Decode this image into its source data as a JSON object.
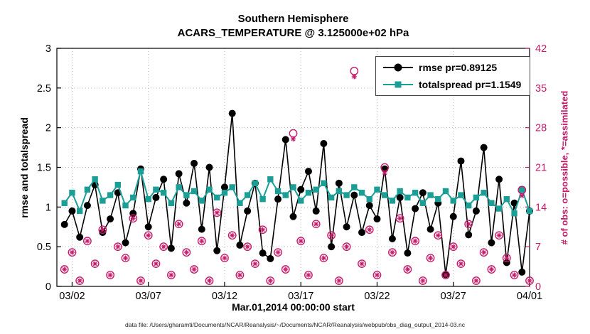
{
  "title": {
    "line1": "Southern Hemisphere",
    "line2": "ACARS_TEMPERATURE @ 3.125000e+02 hPa"
  },
  "axes": {
    "left_label": "rmse and totalspread",
    "right_label": "# of obs: o=possible, *=assimilated",
    "x_label": "Mar.01,2014 00:00:00 start",
    "left_ticks": [
      0,
      0.5,
      1,
      1.5,
      2,
      2.5,
      3
    ],
    "left_tick_labels": [
      "0",
      "0.5",
      "1",
      "1.5",
      "2",
      "2.5",
      "3"
    ],
    "right_ticks": [
      0,
      7,
      14,
      21,
      28,
      35,
      42
    ],
    "right_tick_labels": [
      "0",
      "7",
      "14",
      "21",
      "28",
      "35",
      "42"
    ],
    "x_tick_days": [
      1,
      6,
      11,
      16,
      21,
      26,
      31
    ],
    "x_tick_labels": [
      "03/02",
      "03/07",
      "03/12",
      "03/17",
      "03/22",
      "03/27",
      "04/01"
    ]
  },
  "legend": [
    {
      "label": "rmse pr=0.89125",
      "marker": "circle",
      "color": "#000000"
    },
    {
      "label": "totalspread pr=1.1549",
      "marker": "square",
      "color": "#1A9E96"
    }
  ],
  "colors": {
    "rmse": "#000000",
    "totalspread": "#1A9E96",
    "obs": "#C51B6B",
    "grid": "#b8b8b8",
    "axis": "#000000"
  },
  "caption": "data file: /Users/gharamti/Documents/NCAR/Reanalysis/~/Documents/NCAR/Reanalysis/webpub/obs_diag_output_2014-03.nc",
  "chart_data": {
    "type": "line",
    "title": "Southern Hemisphere — ACARS_TEMPERATURE @ 3.125000e+02 hPa",
    "x_unit": "days since Mar.01,2014 00:00:00",
    "xlim": [
      0,
      31
    ],
    "left_ylim": [
      0,
      3
    ],
    "right_ylim": [
      0,
      42
    ],
    "grid": true,
    "x": [
      0.5,
      1,
      1.5,
      2,
      2.5,
      3,
      3.5,
      4,
      4.5,
      5,
      5.5,
      6,
      6.5,
      7,
      7.5,
      8,
      8.5,
      9,
      9.5,
      10,
      10.5,
      11,
      11.5,
      12,
      12.5,
      13,
      13.5,
      14,
      14.5,
      15,
      15.5,
      16,
      16.5,
      17,
      17.5,
      18,
      18.5,
      19,
      19.5,
      20,
      20.5,
      21,
      21.5,
      22,
      22.5,
      23,
      23.5,
      24,
      24.5,
      25,
      25.5,
      26,
      26.5,
      27,
      27.5,
      28,
      28.5,
      29,
      29.5,
      30,
      30.5,
      31
    ],
    "series": [
      {
        "name": "rmse",
        "axis": "left",
        "marker": "circle",
        "color": "#000000",
        "values": [
          0.78,
          0.95,
          0.62,
          1.02,
          1.28,
          0.68,
          0.85,
          1.18,
          0.55,
          0.92,
          1.48,
          0.75,
          1.12,
          1.35,
          0.48,
          1.42,
          1.05,
          1.55,
          0.72,
          1.5,
          0.45,
          1.25,
          2.18,
          0.52,
          0.95,
          1.3,
          0.42,
          0.35,
          1.1,
          1.85,
          0.88,
          1.22,
          1.45,
          0.95,
          1.8,
          0.5,
          1.3,
          0.75,
          1.15,
          0.68,
          1.02,
          0.85,
          1.48,
          0.6,
          1.12,
          0.42,
          0.98,
          1.18,
          0.72,
          1.05,
          0.15,
          0.88,
          1.58,
          0.65,
          0.95,
          1.75,
          0.55,
          1.35,
          0.3,
          1.05,
          0.18,
          0.95
        ]
      },
      {
        "name": "totalspread",
        "axis": "left",
        "marker": "square",
        "color": "#1A9E96",
        "values": [
          1.05,
          1.18,
          0.95,
          1.22,
          1.35,
          1.08,
          1.15,
          1.28,
          1.02,
          1.12,
          1.45,
          1.1,
          1.22,
          1.18,
          1.05,
          1.25,
          1.15,
          1.2,
          1.08,
          1.22,
          1.12,
          1.18,
          1.25,
          1.05,
          1.15,
          1.3,
          1.1,
          1.35,
          1.2,
          1.15,
          1.25,
          1.08,
          1.18,
          1.22,
          1.3,
          1.12,
          1.2,
          1.15,
          1.25,
          1.18,
          1.1,
          1.22,
          1.15,
          1.08,
          1.2,
          1.12,
          1.18,
          1.05,
          1.15,
          1.1,
          1.2,
          1.08,
          1.15,
          1.02,
          1.12,
          1.18,
          1.05,
          0.98,
          1.1,
          0.92,
          1.22,
          0.95
        ]
      },
      {
        "name": "obs_possible",
        "axis": "right",
        "marker": "open-circle",
        "color": "#C51B6B",
        "values": [
          3,
          6,
          1,
          8,
          4,
          10,
          2,
          7,
          5,
          12,
          1,
          9,
          4,
          7,
          2,
          11,
          6,
          3,
          8,
          1,
          13,
          5,
          9,
          2,
          7,
          4,
          10,
          1,
          6,
          3,
          27,
          8,
          2,
          11,
          5,
          9,
          1,
          7,
          38,
          4,
          10,
          2,
          21,
          6,
          12,
          3,
          8,
          1,
          5,
          9,
          2,
          7,
          4,
          11,
          1,
          6,
          3,
          9,
          5,
          2,
          17,
          1
        ]
      },
      {
        "name": "obs_assimilated",
        "axis": "right",
        "marker": "asterisk",
        "color": "#C51B6B",
        "values": [
          3,
          6,
          1,
          8,
          4,
          10,
          2,
          7,
          5,
          12,
          1,
          9,
          4,
          7,
          2,
          11,
          6,
          3,
          8,
          1,
          13,
          5,
          9,
          2,
          7,
          4,
          10,
          1,
          6,
          3,
          26,
          8,
          2,
          11,
          5,
          9,
          1,
          7,
          37,
          4,
          10,
          2,
          20,
          6,
          12,
          3,
          8,
          1,
          5,
          9,
          2,
          7,
          4,
          11,
          1,
          6,
          3,
          9,
          5,
          2,
          16,
          1
        ]
      }
    ]
  }
}
